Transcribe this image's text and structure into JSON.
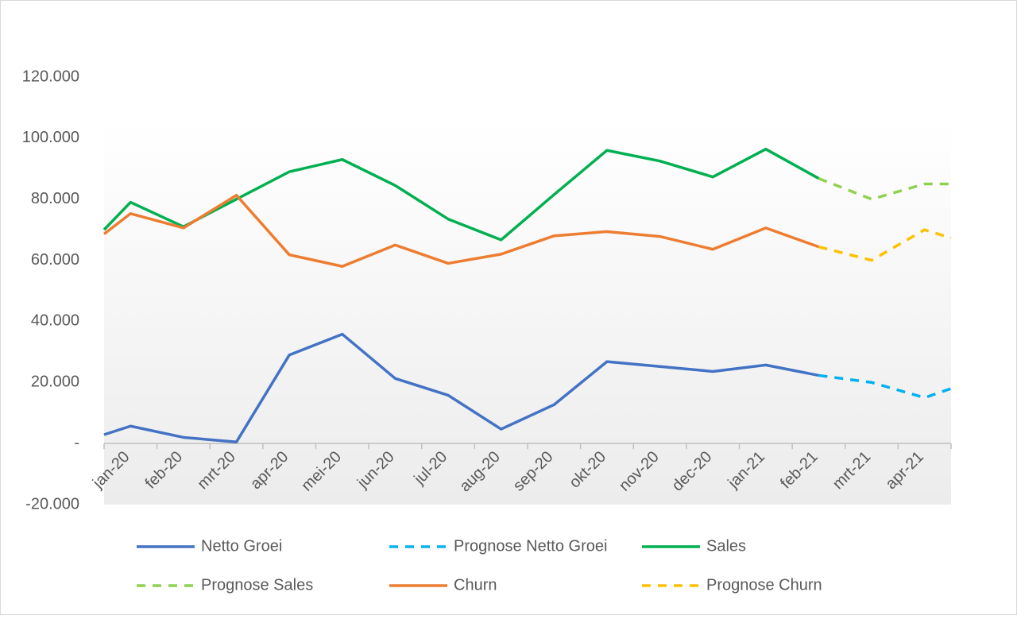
{
  "chart_data": {
    "type": "line",
    "x": [
      0,
      0.5,
      1.5,
      2.5,
      3.5,
      4.5,
      5.5,
      6.5,
      7.5,
      8.5,
      9.5,
      10.5,
      11.5,
      12.5,
      13.5,
      14.5,
      15.5,
      16
    ],
    "xlim": [
      0,
      16
    ],
    "xticks": [
      {
        "value": 0.5,
        "label": "jan-20"
      },
      {
        "value": 1.5,
        "label": "feb-20"
      },
      {
        "value": 2.5,
        "label": "mrt-20"
      },
      {
        "value": 3.5,
        "label": "apr-20"
      },
      {
        "value": 4.5,
        "label": "mei-20"
      },
      {
        "value": 5.5,
        "label": "jun-20"
      },
      {
        "value": 6.5,
        "label": "jul-20"
      },
      {
        "value": 7.5,
        "label": "aug-20"
      },
      {
        "value": 8.5,
        "label": "sep-20"
      },
      {
        "value": 9.5,
        "label": "okt-20"
      },
      {
        "value": 10.5,
        "label": "nov-20"
      },
      {
        "value": 11.5,
        "label": "dec-20"
      },
      {
        "value": 12.5,
        "label": "jan-21"
      },
      {
        "value": 13.5,
        "label": "feb-21"
      },
      {
        "value": 14.5,
        "label": "mrt-21"
      },
      {
        "value": 15.5,
        "label": "apr-21"
      }
    ],
    "ylim": [
      -20000,
      120000
    ],
    "yticks": [
      {
        "value": -20000,
        "label": "-20.000"
      },
      {
        "value": 0,
        "label": "-"
      },
      {
        "value": 20000,
        "label": "20.000"
      },
      {
        "value": 40000,
        "label": "40.000"
      },
      {
        "value": 60000,
        "label": "60.000"
      },
      {
        "value": 80000,
        "label": "80.000"
      },
      {
        "value": 100000,
        "label": "100.000"
      },
      {
        "value": 120000,
        "label": "120.000"
      }
    ],
    "grid": false,
    "series": [
      {
        "name": "Netto Groei",
        "color": "#4472c4",
        "dashed": false,
        "values": [
          2900,
          5700,
          2000,
          500,
          29000,
          35800,
          21300,
          15800,
          4700,
          12700,
          26800,
          25200,
          23600,
          25700,
          22300,
          null,
          null,
          null
        ]
      },
      {
        "name": "Prognose Netto Groei",
        "color": "#00b0f0",
        "dashed": true,
        "values": [
          null,
          null,
          null,
          null,
          null,
          null,
          null,
          null,
          null,
          null,
          null,
          null,
          null,
          null,
          22300,
          20000,
          15000,
          18000
        ]
      },
      {
        "name": "Sales",
        "color": "#00b050",
        "dashed": false,
        "values": [
          70000,
          79000,
          71000,
          80000,
          89000,
          93000,
          84500,
          73500,
          66700,
          81500,
          96000,
          92500,
          87300,
          96400,
          86800,
          null,
          null,
          null
        ]
      },
      {
        "name": "Prognose Sales",
        "color": "#92d050",
        "dashed": true,
        "values": [
          null,
          null,
          null,
          null,
          null,
          null,
          null,
          null,
          null,
          null,
          null,
          null,
          null,
          null,
          86800,
          80000,
          85000,
          85000
        ]
      },
      {
        "name": "Churn",
        "color": "#ed7d31",
        "dashed": false,
        "values": [
          68600,
          75300,
          70600,
          81300,
          61800,
          58000,
          65000,
          59000,
          62000,
          68000,
          69400,
          67800,
          63600,
          70600,
          64400,
          null,
          null,
          null
        ]
      },
      {
        "name": "Prognose Churn",
        "color": "#ffc000",
        "dashed": true,
        "values": [
          null,
          null,
          null,
          null,
          null,
          null,
          null,
          null,
          null,
          null,
          null,
          null,
          null,
          null,
          64400,
          60000,
          70000,
          67300
        ]
      }
    ]
  }
}
